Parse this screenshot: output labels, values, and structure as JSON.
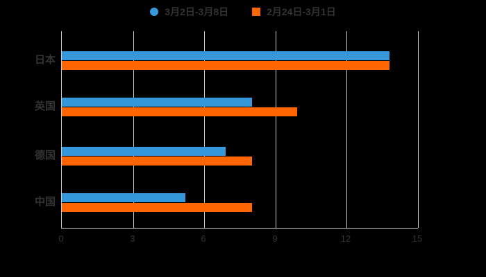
{
  "legend": {
    "items": [
      {
        "label": "3月2日-3月8日",
        "marker": "circle-icon",
        "color": "#3498db"
      },
      {
        "label": "2月24日-3月1日",
        "marker": "square-icon",
        "color": "#ff6600"
      }
    ]
  },
  "chart_data": {
    "type": "bar",
    "orientation": "horizontal",
    "title": "",
    "xlabel": "",
    "ylabel": "",
    "categories": [
      "日本",
      "英国",
      "德国",
      "中国"
    ],
    "series": [
      {
        "name": "3月2日-3月8日",
        "color": "#3498db",
        "marker": "circle",
        "values": [
          13.8,
          8.0,
          6.9,
          5.2
        ]
      },
      {
        "name": "2月24日-3月1日",
        "color": "#ff6600",
        "marker": "square",
        "values": [
          13.8,
          9.9,
          8.0,
          8.0
        ]
      }
    ],
    "xlim": [
      0,
      15
    ],
    "xticks": [
      0,
      3,
      6,
      9,
      12,
      15
    ],
    "grid": true,
    "legend_position": "top"
  },
  "colors": {
    "background": "#000000",
    "text": "#333333",
    "gridline": "#cccccc",
    "series_blue": "#3498db",
    "series_orange": "#ff6600"
  }
}
